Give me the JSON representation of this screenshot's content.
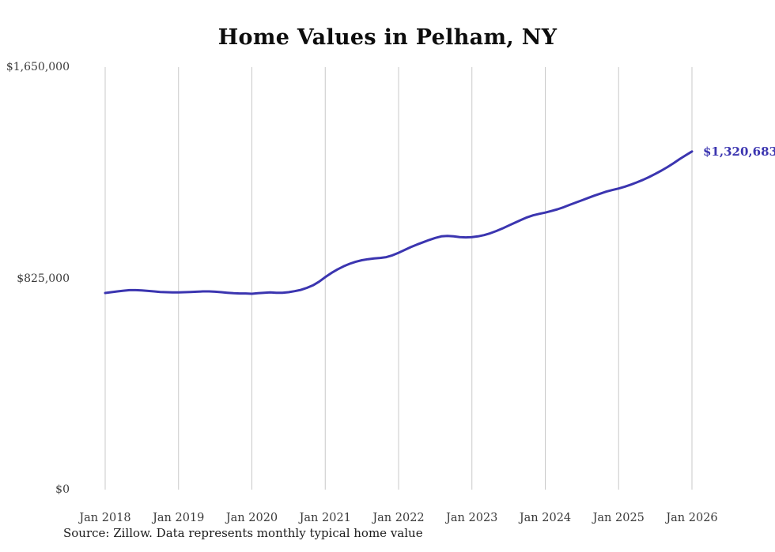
{
  "chart_data": {
    "type": "line",
    "title": "Home Values in Pelham, NY",
    "source_note": "Source: Zillow. Data represents monthly typical home value",
    "series_name": "Monthly typical home value",
    "x_frequency": "monthly",
    "x_start": "Jan 2018",
    "x_end": "Jan 2026",
    "x_tick_labels": [
      "Jan 2018",
      "Jan 2019",
      "Jan 2020",
      "Jan 2021",
      "Jan 2022",
      "Jan 2023",
      "Jan 2024",
      "Jan 2025",
      "Jan 2026"
    ],
    "y_tick_labels": [
      "$0",
      "$825,000",
      "$1,650,000"
    ],
    "y_tick_values": [
      0,
      825000,
      1650000
    ],
    "ylim": [
      0,
      1650000
    ],
    "end_label": "$1,320,683",
    "end_value": 1320683,
    "line_color": "#3b35b0",
    "grid_color": "#c9c9c9",
    "legend": "none",
    "grid": "vertical-only",
    "values": [
      768000,
      771000,
      774000,
      777000,
      779000,
      779000,
      778000,
      776000,
      774000,
      772000,
      771000,
      770000,
      770000,
      771000,
      772000,
      773000,
      774000,
      774000,
      773000,
      771000,
      769000,
      767000,
      766000,
      766000,
      765000,
      767000,
      769000,
      770000,
      769000,
      769000,
      771000,
      775000,
      780000,
      788000,
      798000,
      812000,
      830000,
      846000,
      860000,
      872000,
      882000,
      890000,
      896000,
      900000,
      903000,
      905000,
      908000,
      915000,
      925000,
      936000,
      947000,
      957000,
      966000,
      975000,
      983000,
      989000,
      991000,
      989000,
      986000,
      985000,
      986000,
      989000,
      994000,
      1001000,
      1010000,
      1020000,
      1031000,
      1042000,
      1053000,
      1063000,
      1071000,
      1077000,
      1082000,
      1088000,
      1095000,
      1103000,
      1112000,
      1121000,
      1130000,
      1139000,
      1148000,
      1156000,
      1164000,
      1170000,
      1176000,
      1183000,
      1191000,
      1200000,
      1210000,
      1221000,
      1233000,
      1246000,
      1260000,
      1275000,
      1291000,
      1306000,
      1320683
    ]
  }
}
